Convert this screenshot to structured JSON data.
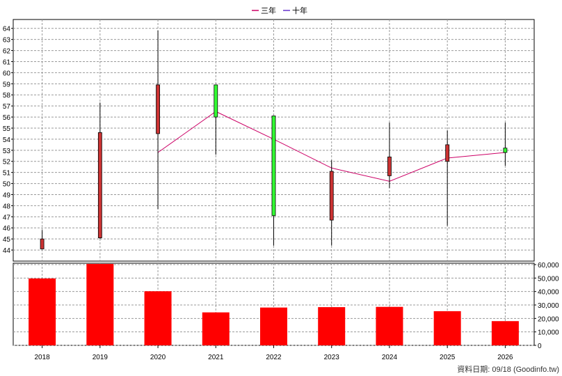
{
  "legend": [
    {
      "label": "三年",
      "color": "#cc0066"
    },
    {
      "label": "十年",
      "color": "#6633cc"
    }
  ],
  "source_note": "資料日期: 09/18 (Goodinfo.tw)",
  "chart_data": [
    {
      "type": "candlestick",
      "x": [
        "2018",
        "2019",
        "2020",
        "2021",
        "2022",
        "2023",
        "2024",
        "2025",
        "2026"
      ],
      "ylim": [
        43,
        64.8
      ],
      "yticks": [
        44,
        45,
        46,
        47,
        48,
        49,
        50,
        51,
        52,
        53,
        54,
        55,
        56,
        57,
        58,
        59,
        60,
        61,
        62,
        63,
        64
      ],
      "grid": true,
      "ohlc": [
        {
          "open": 44.1,
          "high": 45.8,
          "low": 44.1,
          "close": 45.0
        },
        {
          "open": 45.1,
          "high": 57.3,
          "low": 45.0,
          "close": 54.6
        },
        {
          "open": 54.5,
          "high": 63.8,
          "low": 47.7,
          "close": 58.9
        },
        {
          "open": 58.9,
          "high": 58.9,
          "low": 52.6,
          "close": 56.0
        },
        {
          "open": 56.1,
          "high": 56.1,
          "low": 44.4,
          "close": 47.1
        },
        {
          "open": 46.7,
          "high": 52.1,
          "low": 44.4,
          "close": 51.1
        },
        {
          "open": 50.7,
          "high": 55.5,
          "low": 49.6,
          "close": 52.4
        },
        {
          "open": 52.0,
          "high": 54.8,
          "low": 46.2,
          "close": 53.5
        },
        {
          "open": 53.2,
          "high": 55.5,
          "low": 51.6,
          "close": 52.8
        }
      ],
      "up_color": "#cc3333",
      "down_color": "#33ff33",
      "series": [
        {
          "name": "三年",
          "color": "#cc0066",
          "values": [
            null,
            null,
            52.8,
            56.5,
            54.0,
            51.4,
            50.2,
            52.3,
            52.8
          ]
        }
      ]
    },
    {
      "type": "bar",
      "x": [
        "2018",
        "2019",
        "2020",
        "2021",
        "2022",
        "2023",
        "2024",
        "2025",
        "2026"
      ],
      "values": [
        49700,
        60500,
        40200,
        24500,
        28100,
        28400,
        28600,
        25400,
        18000
      ],
      "ylim": [
        0,
        60000
      ],
      "yticks": [
        0,
        10000,
        20000,
        30000,
        40000,
        50000,
        60000
      ],
      "ytick_labels": [
        "0",
        "10,000",
        "20,000",
        "30,000",
        "40,000",
        "50,000",
        "60,000"
      ],
      "color": "#ff0000"
    }
  ]
}
